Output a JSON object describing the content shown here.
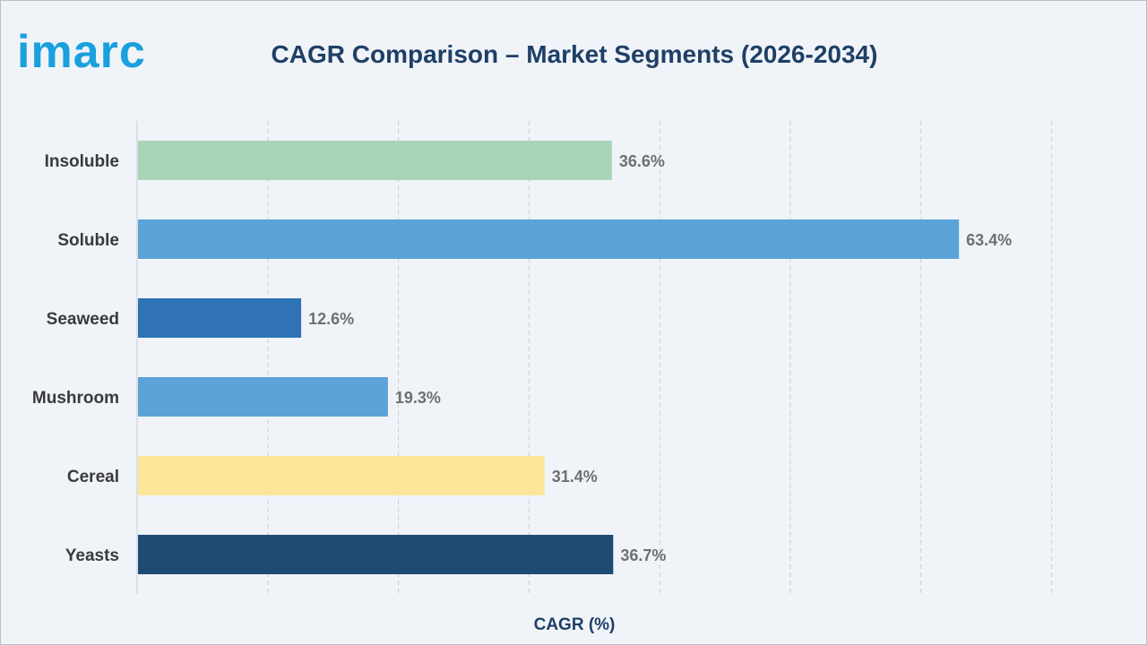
{
  "brand": {
    "name": "imarc",
    "color": "#1aa0dd"
  },
  "chart_data": {
    "type": "bar",
    "orientation": "horizontal",
    "title": "CAGR Comparison – Market Segments (2026-2034)",
    "xlabel": "CAGR (%)",
    "ylabel": "",
    "xlim": [
      0,
      70
    ],
    "grid": true,
    "categories": [
      "Insoluble",
      "Soluble",
      "Seaweed",
      "Mushroom",
      "Cereal",
      "Yeasts"
    ],
    "values": [
      36.6,
      63.4,
      12.6,
      19.3,
      31.4,
      36.7
    ],
    "value_labels": [
      "36.6%",
      "63.4%",
      "12.6%",
      "19.3%",
      "31.4%",
      "36.7%"
    ],
    "colors": [
      "#a8d5b9",
      "#5ba3d8",
      "#2f73b6",
      "#5ba3d8",
      "#fde699",
      "#1f4a73"
    ]
  }
}
